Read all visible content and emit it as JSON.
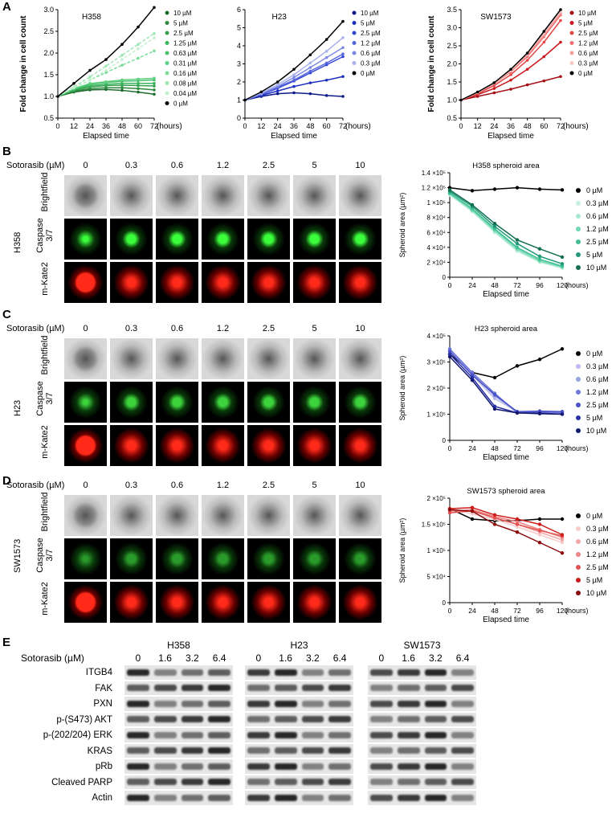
{
  "panels": {
    "A": "A",
    "B": "B",
    "C": "C",
    "D": "D",
    "E": "E"
  },
  "growth_charts": [
    {
      "title": "H358",
      "ylabel": "Fold change in cell count",
      "xlabel": "Elapsed time",
      "x_unit": "(hours)",
      "x": [
        0,
        12,
        24,
        36,
        48,
        60,
        72
      ],
      "xlim": [
        0,
        72
      ],
      "ylim": [
        0.5,
        3.0
      ],
      "yticks": [
        "0.5",
        "1.0",
        "1.5",
        "2.0",
        "2.5",
        "3.0"
      ],
      "legend": [
        {
          "name": "10 µM",
          "color": "#1f6b2e"
        },
        {
          "name": "5 µM",
          "color": "#2d8a3c"
        },
        {
          "name": "2.5 µM",
          "color": "#34a050"
        },
        {
          "name": "1.25 µM",
          "color": "#3bb45c"
        },
        {
          "name": "0.63 µM",
          "color": "#46c06b"
        },
        {
          "name": "0.31 µM",
          "color": "#5fcf82"
        },
        {
          "name": "0.16 µM",
          "color": "#7edb9a"
        },
        {
          "name": "0.08 µM",
          "color": "#a2e6b6"
        },
        {
          "name": "0.04 µM",
          "color": "#c4f0d0"
        },
        {
          "name": "0 µM",
          "color": "#000000"
        }
      ]
    },
    {
      "title": "H23",
      "ylabel": "",
      "xlabel": "Elapsed time",
      "x_unit": "(hours)",
      "x": [
        0,
        12,
        24,
        36,
        48,
        60,
        72
      ],
      "xlim": [
        0,
        72
      ],
      "ylim": [
        0,
        6
      ],
      "yticks": [
        "0",
        "1",
        "2",
        "3",
        "4",
        "5",
        "6"
      ],
      "legend": [
        {
          "name": "10 µM",
          "color": "#0d1a8a"
        },
        {
          "name": "5 µM",
          "color": "#1d2fbf"
        },
        {
          "name": "2.5 µM",
          "color": "#3346d3"
        },
        {
          "name": "1.2 µM",
          "color": "#5566dd"
        },
        {
          "name": "0.6 µM",
          "color": "#7c88e4"
        },
        {
          "name": "0.3 µM",
          "color": "#aab2ee"
        },
        {
          "name": "0 µM",
          "color": "#000000"
        }
      ]
    },
    {
      "title": "SW1573",
      "ylabel": "Fold change in cell count",
      "xlabel": "Elapsed time",
      "x_unit": "(hours)",
      "x": [
        0,
        12,
        24,
        36,
        48,
        60,
        72
      ],
      "xlim": [
        0,
        72
      ],
      "ylim": [
        0.5,
        3.5
      ],
      "yticks": [
        "0.5",
        "1.0",
        "1.5",
        "2.0",
        "2.5",
        "3.0",
        "3.5"
      ],
      "legend": [
        {
          "name": "10 µM",
          "color": "#a50f15"
        },
        {
          "name": "5 µM",
          "color": "#cb181d"
        },
        {
          "name": "2.5 µM",
          "color": "#e34646"
        },
        {
          "name": "1.2 µM",
          "color": "#ef7070"
        },
        {
          "name": "0.6 µM",
          "color": "#f59c9c"
        },
        {
          "name": "0.3 µM",
          "color": "#f8c4c4"
        },
        {
          "name": "0 µM",
          "color": "#000000"
        }
      ]
    }
  ],
  "chart_data": [
    {
      "type": "line",
      "title": "H358",
      "xlabel": "Elapsed time",
      "ylabel": "Fold change in cell count",
      "x": [
        0,
        12,
        24,
        36,
        48,
        60,
        72
      ],
      "ylim": [
        0.5,
        3.0
      ],
      "series": [
        {
          "name": "10 µM",
          "values": [
            1.0,
            1.1,
            1.15,
            1.16,
            1.14,
            1.1,
            1.05
          ]
        },
        {
          "name": "5 µM",
          "values": [
            1.0,
            1.12,
            1.18,
            1.2,
            1.2,
            1.18,
            1.15
          ]
        },
        {
          "name": "2.5 µM",
          "values": [
            1.0,
            1.14,
            1.22,
            1.25,
            1.26,
            1.25,
            1.24
          ]
        },
        {
          "name": "1.25 µM",
          "values": [
            1.0,
            1.16,
            1.25,
            1.28,
            1.3,
            1.3,
            1.3
          ]
        },
        {
          "name": "0.63 µM",
          "values": [
            1.0,
            1.17,
            1.28,
            1.32,
            1.35,
            1.36,
            1.38
          ]
        },
        {
          "name": "0.31 µM",
          "values": [
            1.0,
            1.18,
            1.3,
            1.34,
            1.38,
            1.4,
            1.42
          ]
        },
        {
          "name": "0.16 µM",
          "values": [
            1.0,
            1.2,
            1.38,
            1.55,
            1.72,
            1.88,
            2.05
          ]
        },
        {
          "name": "0.08 µM",
          "values": [
            1.0,
            1.22,
            1.45,
            1.7,
            1.95,
            2.2,
            2.45
          ]
        },
        {
          "name": "0.04 µM",
          "values": [
            1.0,
            1.2,
            1.38,
            1.6,
            1.85,
            2.1,
            2.35
          ]
        },
        {
          "name": "0 µM",
          "values": [
            1.0,
            1.3,
            1.6,
            1.85,
            2.2,
            2.6,
            3.05
          ]
        }
      ]
    },
    {
      "type": "line",
      "title": "H23",
      "xlabel": "Elapsed time",
      "x": [
        0,
        12,
        24,
        36,
        48,
        60,
        72
      ],
      "ylim": [
        0,
        6
      ],
      "series": [
        {
          "name": "10 µM",
          "values": [
            1.0,
            1.2,
            1.35,
            1.4,
            1.35,
            1.25,
            1.2
          ]
        },
        {
          "name": "5 µM",
          "values": [
            1.0,
            1.25,
            1.5,
            1.75,
            1.95,
            2.1,
            2.3
          ]
        },
        {
          "name": "2.5 µM",
          "values": [
            1.0,
            1.3,
            1.65,
            2.05,
            2.5,
            2.95,
            3.4
          ]
        },
        {
          "name": "1.2 µM",
          "values": [
            1.0,
            1.32,
            1.7,
            2.1,
            2.6,
            3.05,
            3.55
          ]
        },
        {
          "name": "0.6 µM",
          "values": [
            1.0,
            1.35,
            1.75,
            2.25,
            2.8,
            3.35,
            3.9
          ]
        },
        {
          "name": "0.3 µM",
          "values": [
            1.0,
            1.38,
            1.85,
            2.4,
            3.05,
            3.7,
            4.45
          ]
        },
        {
          "name": "0 µM",
          "values": [
            1.0,
            1.45,
            2.0,
            2.7,
            3.5,
            4.35,
            5.35
          ]
        }
      ]
    },
    {
      "type": "line",
      "title": "SW1573",
      "xlabel": "Elapsed time",
      "ylabel": "Fold change in cell count",
      "x": [
        0,
        12,
        24,
        36,
        48,
        60,
        72
      ],
      "ylim": [
        0.5,
        3.5
      ],
      "series": [
        {
          "name": "10 µM",
          "values": [
            1.0,
            1.1,
            1.2,
            1.3,
            1.42,
            1.53,
            1.65
          ]
        },
        {
          "name": "5 µM",
          "values": [
            1.0,
            1.15,
            1.32,
            1.55,
            1.85,
            2.2,
            2.6
          ]
        },
        {
          "name": "2.5 µM",
          "values": [
            1.0,
            1.18,
            1.4,
            1.7,
            2.1,
            2.6,
            3.2
          ]
        },
        {
          "name": "1.2 µM",
          "values": [
            1.0,
            1.2,
            1.45,
            1.78,
            2.2,
            2.75,
            3.35
          ]
        },
        {
          "name": "0.6 µM",
          "values": [
            1.0,
            1.2,
            1.46,
            1.8,
            2.25,
            2.8,
            3.4
          ]
        },
        {
          "name": "0.3 µM",
          "values": [
            1.0,
            1.21,
            1.47,
            1.82,
            2.28,
            2.85,
            3.45
          ]
        },
        {
          "name": "0 µM",
          "values": [
            1.0,
            1.22,
            1.48,
            1.85,
            2.3,
            2.9,
            3.5
          ]
        }
      ]
    },
    {
      "type": "line",
      "title": "H358 spheroid area",
      "xlabel": "Elapsed time",
      "ylabel": "Spheroid area (µm²)",
      "x": [
        0,
        24,
        48,
        72,
        96,
        120
      ],
      "ylim": [
        0,
        120000
      ],
      "series": [
        {
          "name": "0 µM",
          "values": [
            120000,
            116000,
            118000,
            120000,
            118000,
            117000
          ]
        },
        {
          "name": "0.3 µM",
          "values": [
            110000,
            88000,
            60000,
            35000,
            20000,
            12000
          ]
        },
        {
          "name": "0.6 µM",
          "values": [
            111000,
            89000,
            61000,
            36000,
            21000,
            13000
          ]
        },
        {
          "name": "1.2 µM",
          "values": [
            112000,
            90000,
            63000,
            38000,
            22000,
            14000
          ]
        },
        {
          "name": "2.5 µM",
          "values": [
            113000,
            92000,
            65000,
            40000,
            24000,
            15000
          ]
        },
        {
          "name": "5 µM",
          "values": [
            115000,
            95000,
            68000,
            45000,
            28000,
            18000
          ]
        },
        {
          "name": "10 µM",
          "values": [
            117000,
            97000,
            72000,
            50000,
            38000,
            27000
          ]
        }
      ]
    },
    {
      "type": "line",
      "title": "H23 spheroid area",
      "xlabel": "Elapsed time",
      "ylabel": "Spheroid area (µm²)",
      "x": [
        0,
        24,
        48,
        72,
        96,
        120
      ],
      "ylim": [
        0,
        400000
      ],
      "series": [
        {
          "name": "0 µM",
          "values": [
            330000,
            260000,
            240000,
            285000,
            310000,
            350000
          ]
        },
        {
          "name": "0.3 µM",
          "values": [
            340000,
            250000,
            160000,
            110000,
            105000,
            110000
          ]
        },
        {
          "name": "0.6 µM",
          "values": [
            345000,
            255000,
            170000,
            110000,
            108000,
            108000
          ]
        },
        {
          "name": "1.2 µM",
          "values": [
            350000,
            260000,
            180000,
            105000,
            110000,
            105000
          ]
        },
        {
          "name": "2.5 µM",
          "values": [
            340000,
            250000,
            175000,
            110000,
            112000,
            110000
          ]
        },
        {
          "name": "5 µM",
          "values": [
            330000,
            240000,
            130000,
            105000,
            105000,
            100000
          ]
        },
        {
          "name": "10 µM",
          "values": [
            320000,
            230000,
            120000,
            105000,
            102000,
            100000
          ]
        }
      ]
    },
    {
      "type": "line",
      "title": "SW1573 spheroid area",
      "xlabel": "Elapsed time",
      "ylabel": "Spheroid area (µm²)",
      "x": [
        0,
        24,
        48,
        72,
        96,
        120
      ],
      "ylim": [
        0,
        200000
      ],
      "series": [
        {
          "name": "0 µM",
          "values": [
            180000,
            160000,
            157000,
            157000,
            160000,
            160000
          ]
        },
        {
          "name": "0.3 µM",
          "values": [
            180000,
            170000,
            160000,
            145000,
            130000,
            115000
          ]
        },
        {
          "name": "0.6 µM",
          "values": [
            178000,
            175000,
            163000,
            150000,
            135000,
            120000
          ]
        },
        {
          "name": "1.2 µM",
          "values": [
            175000,
            178000,
            165000,
            155000,
            140000,
            125000
          ]
        },
        {
          "name": "2.5 µM",
          "values": [
            172000,
            176000,
            162000,
            150000,
            138000,
            128000
          ]
        },
        {
          "name": "5 µM",
          "values": [
            180000,
            182000,
            168000,
            160000,
            150000,
            130000
          ]
        },
        {
          "name": "10 µM",
          "values": [
            178000,
            175000,
            150000,
            135000,
            115000,
            95000
          ]
        }
      ]
    }
  ],
  "spheroid_charts": [
    {
      "title": "H358 spheroid area",
      "ylabel": "Spheroid area (µm²)",
      "xlabel": "Elapsed time",
      "x_unit": "(hours)",
      "yticks": [
        "0",
        "2 ×10⁴",
        "4 ×10⁴",
        "6 ×10⁴",
        "8 ×10⁴",
        "1 ×10⁵",
        "1.2 ×10⁵",
        "1.4 ×10⁵"
      ],
      "ymax": 140000,
      "legend": [
        {
          "name": "0 µM",
          "color": "#000000"
        },
        {
          "name": "0.3 µM",
          "color": "#c8f0e0"
        },
        {
          "name": "0.6 µM",
          "color": "#a8e8d0"
        },
        {
          "name": "1.2 µM",
          "color": "#6fd6b0"
        },
        {
          "name": "2.5 µM",
          "color": "#3fbf90"
        },
        {
          "name": "5 µM",
          "color": "#22987a"
        },
        {
          "name": "10 µM",
          "color": "#136e52"
        }
      ]
    },
    {
      "title": "H23 spheroid area",
      "ylabel": "Spheroid area (µm²)",
      "xlabel": "Elapsed time",
      "x_unit": "(hours)",
      "yticks": [
        "0",
        "1 ×10⁵",
        "2 ×10⁵",
        "3 ×10⁵",
        "4 ×10⁵"
      ],
      "ymax": 400000,
      "legend": [
        {
          "name": "0 µM",
          "color": "#000000"
        },
        {
          "name": "0.3 µM",
          "color": "#b8bce8"
        },
        {
          "name": "0.6 µM",
          "color": "#9aa0e2"
        },
        {
          "name": "1.2 µM",
          "color": "#6d76d8"
        },
        {
          "name": "2.5 µM",
          "color": "#4a52c8"
        },
        {
          "name": "5 µM",
          "color": "#2a30a8"
        },
        {
          "name": "10 µM",
          "color": "#141a6e"
        }
      ]
    },
    {
      "title": "SW1573 spheroid area",
      "ylabel": "Spheroid area (µm²)",
      "xlabel": "Elapsed time",
      "x_unit": "(hours)",
      "yticks": [
        "0",
        "5 ×10⁴",
        "1 ×10⁵",
        "1.5 ×10⁵",
        "2 ×10⁵"
      ],
      "ymax": 200000,
      "legend": [
        {
          "name": "0 µM",
          "color": "#000000"
        },
        {
          "name": "0.3 µM",
          "color": "#f7cccc"
        },
        {
          "name": "0.6 µM",
          "color": "#f2a8a8"
        },
        {
          "name": "1.2 µM",
          "color": "#ec8484"
        },
        {
          "name": "2.5 µM",
          "color": "#e35050"
        },
        {
          "name": "5 µM",
          "color": "#cc1c1c"
        },
        {
          "name": "10 µM",
          "color": "#8b0a0a"
        }
      ]
    }
  ],
  "micro": {
    "sotorasib_label": "Sotorasib (µM)",
    "concentrations": [
      "0",
      "0.3",
      "0.6",
      "1.2",
      "2.5",
      "5",
      "10"
    ],
    "row_labels": [
      "Brightfield",
      "Caspase 3/7",
      "m-Kate2"
    ],
    "cell_lines": [
      "H358",
      "H23",
      "SW1573"
    ]
  },
  "western": {
    "sotorasib_label": "Sotorasib (µM)",
    "groups": [
      {
        "name": "H358",
        "lanes": [
          "0",
          "1.6",
          "3.2",
          "6.4"
        ]
      },
      {
        "name": "H23",
        "lanes": [
          "0",
          "1.6",
          "3.2",
          "6.4"
        ]
      },
      {
        "name": "SW1573",
        "lanes": [
          "0",
          "1.6",
          "3.2",
          "6.4"
        ]
      }
    ],
    "proteins": [
      "ITGB4",
      "FAK",
      "PXN",
      "p-(S473) AKT",
      "p-(202/204) ERK",
      "KRAS",
      "pRb",
      "Cleaved PARP",
      "Actin"
    ]
  }
}
